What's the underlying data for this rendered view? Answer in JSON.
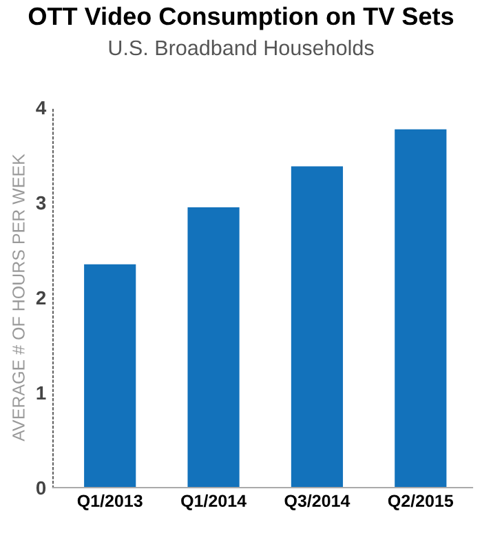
{
  "chart_data": {
    "type": "bar",
    "title": "OTT Video Consumption on TV Sets",
    "subtitle": "U.S. Broadband Households",
    "ylabel": "AVERAGE # OF HOURS PER WEEK",
    "categories": [
      "Q1/2013",
      "Q1/2014",
      "Q3/2014",
      "Q2/2015"
    ],
    "values": [
      2.35,
      2.95,
      3.38,
      3.77
    ],
    "color": "#1372bb",
    "ylim": [
      0,
      4
    ],
    "yticks": [
      0,
      1,
      2,
      3,
      4
    ],
    "grid": false
  }
}
